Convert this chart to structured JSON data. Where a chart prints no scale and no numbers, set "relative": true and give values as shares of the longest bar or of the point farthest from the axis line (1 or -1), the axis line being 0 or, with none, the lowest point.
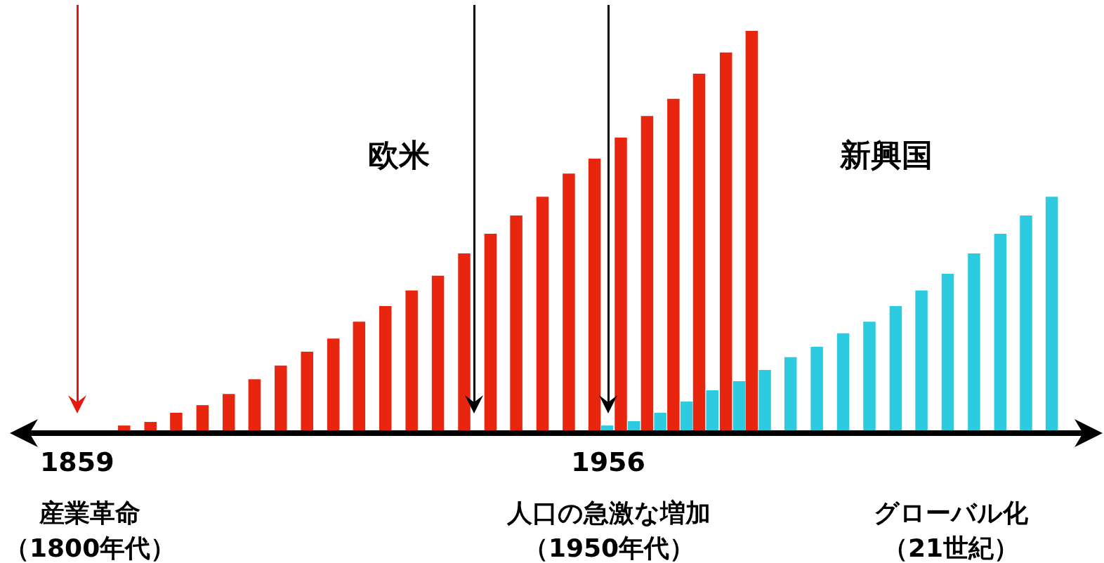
{
  "chart_data": {
    "type": "bar",
    "relative": true,
    "xlim": [
      1848,
      2045
    ],
    "xticks": [
      1859,
      1956
    ],
    "series": [
      {
        "name": "欧米",
        "color": "#e8260f",
        "x": [
          1867.6,
          1872.4,
          1877.1,
          1881.9,
          1886.7,
          1891.4,
          1896.2,
          1901,
          1905.8,
          1910.5,
          1915.3,
          1920.1,
          1924.9,
          1929.7,
          1934.5,
          1939.2,
          1944,
          1948.8,
          1953.5,
          1958.3,
          1963.1,
          1967.9,
          1972.6,
          1977.5,
          1982.2
        ],
        "values": [
          0.012,
          0.021,
          0.044,
          0.063,
          0.091,
          0.128,
          0.162,
          0.197,
          0.23,
          0.272,
          0.311,
          0.35,
          0.387,
          0.443,
          0.492,
          0.538,
          0.585,
          0.643,
          0.68,
          0.733,
          0.787,
          0.83,
          0.893,
          0.946,
          1
        ]
      },
      {
        "name": "新興国",
        "color": "#2ccbe0",
        "x": [
          1955.8,
          1960.7,
          1965.5,
          1970.3,
          1975,
          1979.9,
          1984.6,
          1989.3,
          1994.1,
          1998.9,
          2003.7,
          2008.5,
          2013.2,
          2018,
          2022.8,
          2027.6,
          2032.3,
          2037
        ],
        "values": [
          0.012,
          0.023,
          0.044,
          0.072,
          0.1,
          0.123,
          0.151,
          0.183,
          0.209,
          0.243,
          0.272,
          0.311,
          0.35,
          0.392,
          0.443,
          0.492,
          0.538,
          0.585
        ]
      }
    ],
    "ref_lines": [
      {
        "axis": "x",
        "value": 1859,
        "color": "#e8160c"
      },
      {
        "axis": "x",
        "value": 1931.5,
        "color": "#000000"
      },
      {
        "axis": "x",
        "value": 1956,
        "color": "#000000"
      }
    ],
    "annotations": [
      "産業革命（1800年代）",
      "人口の急激な増加（1950年代）",
      "グローバル化（21世紀）"
    ],
    "grid": false,
    "legend": false
  }
}
